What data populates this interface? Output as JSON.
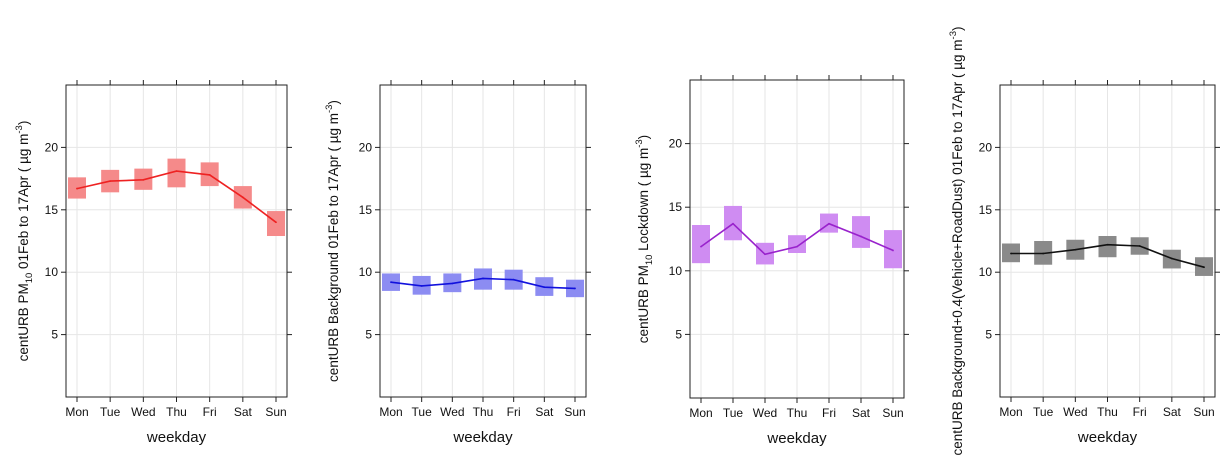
{
  "chart_data": [
    {
      "type": "line",
      "categories": [
        "Mon",
        "Tue",
        "Wed",
        "Thu",
        "Fri",
        "Sat",
        "Sun"
      ],
      "y_ticks": [
        5,
        10,
        15,
        20
      ],
      "ylim": [
        0,
        25
      ],
      "xlabel": "weekday",
      "ylabel_parts": [
        "centURB PM",
        "10",
        " 01Feb to 17Apr ( µg m",
        "-3",
        ")"
      ],
      "color": "#ee2222",
      "band_color": "#f58a8a",
      "series": [
        {
          "values": [
            16.7,
            17.3,
            17.4,
            18.1,
            17.8,
            16.0,
            14.0
          ],
          "lower": [
            15.9,
            16.4,
            16.6,
            16.8,
            16.9,
            15.1,
            12.9
          ],
          "upper": [
            17.6,
            18.2,
            18.3,
            19.1,
            18.8,
            16.9,
            14.9
          ]
        }
      ]
    },
    {
      "type": "line",
      "categories": [
        "Mon",
        "Tue",
        "Wed",
        "Thu",
        "Fri",
        "Sat",
        "Sun"
      ],
      "y_ticks": [
        5,
        10,
        15,
        20
      ],
      "ylim": [
        0,
        25
      ],
      "xlabel": "weekday",
      "ylabel_parts": [
        "centURB Background 01Feb to 17Apr ( µg m",
        "-3",
        ")"
      ],
      "color": "#1111dd",
      "band_color": "#8c8cf2",
      "series": [
        {
          "values": [
            9.2,
            8.9,
            9.1,
            9.5,
            9.4,
            8.8,
            8.7
          ],
          "lower": [
            8.5,
            8.2,
            8.4,
            8.6,
            8.6,
            8.1,
            8.0
          ],
          "upper": [
            9.9,
            9.7,
            9.9,
            10.3,
            10.2,
            9.6,
            9.4
          ]
        }
      ]
    },
    {
      "type": "line",
      "categories": [
        "Mon",
        "Tue",
        "Wed",
        "Thu",
        "Fri",
        "Sat",
        "Sun"
      ],
      "y_ticks": [
        5,
        10,
        15,
        20
      ],
      "ylim": [
        0,
        25
      ],
      "xlabel": "weekday",
      "ylabel_parts": [
        "centURB PM",
        "10",
        " Lockdown ( µg m",
        "-3",
        ")"
      ],
      "color": "#9922cc",
      "band_color": "#cf8cf2",
      "series": [
        {
          "values": [
            11.9,
            13.7,
            11.3,
            11.9,
            13.7,
            12.7,
            11.6
          ],
          "lower": [
            10.6,
            12.4,
            10.5,
            11.4,
            13.0,
            11.8,
            10.2
          ],
          "upper": [
            13.6,
            15.1,
            12.2,
            12.8,
            14.5,
            14.3,
            13.2
          ]
        }
      ]
    },
    {
      "type": "line",
      "categories": [
        "Mon",
        "Tue",
        "Wed",
        "Thu",
        "Fri",
        "Sat",
        "Sun"
      ],
      "y_ticks": [
        5,
        10,
        15,
        20
      ],
      "ylim": [
        0,
        25
      ],
      "xlabel": "weekday",
      "ylabel_parts": [
        "centURB Background+0.4(Vehicle+RoadDust) 01Feb to 17Apr ( µg m",
        "-3",
        ")"
      ],
      "color": "#111111",
      "band_color": "#8a8a8a",
      "series": [
        {
          "values": [
            11.5,
            11.5,
            11.8,
            12.2,
            12.1,
            11.1,
            10.4
          ],
          "lower": [
            10.8,
            10.6,
            11.0,
            11.2,
            11.4,
            10.3,
            9.7
          ],
          "upper": [
            12.3,
            12.5,
            12.6,
            12.9,
            12.8,
            11.8,
            11.2
          ]
        }
      ]
    }
  ]
}
